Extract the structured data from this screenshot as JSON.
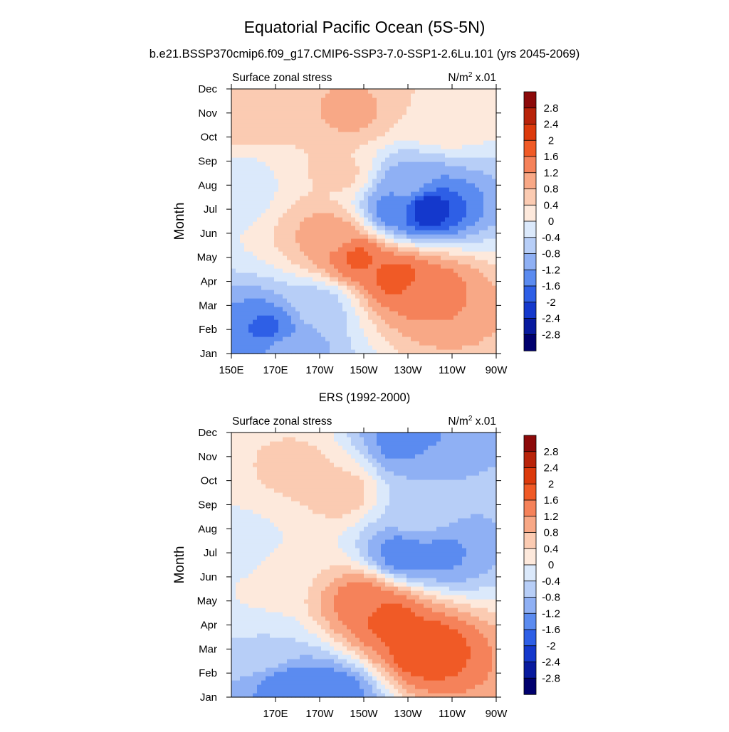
{
  "figure": {
    "title": "Equatorial Pacific Ocean (5S-5N)",
    "panel_top_title": "b.e21.BSSP370cmip6.f09_g17.CMIP6-SSP3-7.0-SSP1-2.6Lu.101 (yrs 2045-2069)",
    "panel_bottom_title": "ERS (1992-2000)"
  },
  "colorbar": {
    "levels": [
      "2.8",
      "2.4",
      "2",
      "1.6",
      "1.2",
      "0.8",
      "0.4",
      "0",
      "-0.4",
      "-0.8",
      "-1.2",
      "-1.6",
      "-2",
      "-2.4",
      "-2.8"
    ],
    "colors": [
      "#8c0a0a",
      "#b8230a",
      "#dc3a0c",
      "#f05a26",
      "#f5825a",
      "#f8a886",
      "#fbcbb2",
      "#fde9dc",
      "#dbe9fb",
      "#b7cef7",
      "#8fb0f4",
      "#5b8bf0",
      "#2e5fe6",
      "#1438cc",
      "#081a9e",
      "#00006e"
    ]
  },
  "chart_data": [
    {
      "type": "heatmap",
      "left_label": "Surface zonal stress",
      "units_label": "N/m",
      "units_sup": "2",
      "units_tail": " x.01",
      "ylabel": "Month",
      "x_ticks": [
        "150E",
        "170E",
        "170W",
        "150W",
        "130W",
        "110W",
        "90W"
      ],
      "y_ticks": [
        "Jan",
        "Feb",
        "Mar",
        "Apr",
        "May",
        "Jun",
        "Jul",
        "Aug",
        "Sep",
        "Oct",
        "Nov",
        "Dec"
      ],
      "x_range": [
        "150E",
        "90W"
      ],
      "y_range": [
        "Jan",
        "Dec"
      ],
      "features": [
        {
          "lon": 167,
          "month": 2.0,
          "value": -1.7
        },
        {
          "lon": 175,
          "month": 1.2,
          "value": -1.0
        },
        {
          "lon": 190,
          "month": 3.0,
          "value": -0.6
        },
        {
          "lon": 207,
          "month": 5.0,
          "value": 1.7
        },
        {
          "lon": 225,
          "month": 4.2,
          "value": 1.8
        },
        {
          "lon": 240,
          "month": 3.8,
          "value": 1.4
        },
        {
          "lon": 195,
          "month": 6.0,
          "value": 1.0
        },
        {
          "lon": 225,
          "month": 7.0,
          "value": -1.5
        },
        {
          "lon": 238,
          "month": 7.0,
          "value": -2.4
        },
        {
          "lon": 230,
          "month": 8.0,
          "value": -1.0
        },
        {
          "lon": 200,
          "month": 8.5,
          "value": 0.5
        },
        {
          "lon": 205,
          "month": 11.0,
          "value": 0.9
        },
        {
          "lon": 245,
          "month": 10.8,
          "value": 0.4
        },
        {
          "lon": 151,
          "month": 8.0,
          "value": -0.3
        },
        {
          "lon": 152,
          "month": 11.0,
          "value": 0.8
        }
      ]
    },
    {
      "type": "heatmap",
      "left_label": "Surface zonal stress",
      "units_label": "N/m",
      "units_sup": "2",
      "units_tail": " x.01",
      "ylabel": "Month",
      "x_ticks": [
        "170E",
        "170W",
        "150W",
        "130W",
        "110W",
        "90W"
      ],
      "y_ticks": [
        "Jan",
        "Feb",
        "Mar",
        "Apr",
        "May",
        "Jun",
        "Jul",
        "Aug",
        "Sep",
        "Oct",
        "Nov",
        "Dec"
      ],
      "x_range": [
        "150E",
        "90W"
      ],
      "y_range": [
        "Jan",
        "Dec"
      ],
      "features": [
        {
          "lon": 175,
          "month": 1.5,
          "value": -1.4
        },
        {
          "lon": 195,
          "month": 1.1,
          "value": -1.6
        },
        {
          "lon": 165,
          "month": 3.0,
          "value": -0.4
        },
        {
          "lon": 222,
          "month": 4.3,
          "value": 1.8
        },
        {
          "lon": 237,
          "month": 3.1,
          "value": 2.0
        },
        {
          "lon": 210,
          "month": 5.0,
          "value": 1.5
        },
        {
          "lon": 228,
          "month": 7.0,
          "value": -1.5
        },
        {
          "lon": 245,
          "month": 7.0,
          "value": -1.3
        },
        {
          "lon": 235,
          "month": 8.5,
          "value": -0.5
        },
        {
          "lon": 230,
          "month": 11.6,
          "value": -1.5
        },
        {
          "lon": 240,
          "month": 10.5,
          "value": -0.8
        },
        {
          "lon": 180,
          "month": 10.5,
          "value": 0.5
        },
        {
          "lon": 200,
          "month": 9.5,
          "value": 0.6
        },
        {
          "lon": 170,
          "month": 6.0,
          "value": 0.3
        },
        {
          "lon": 155,
          "month": 7.0,
          "value": -0.3
        }
      ]
    }
  ]
}
